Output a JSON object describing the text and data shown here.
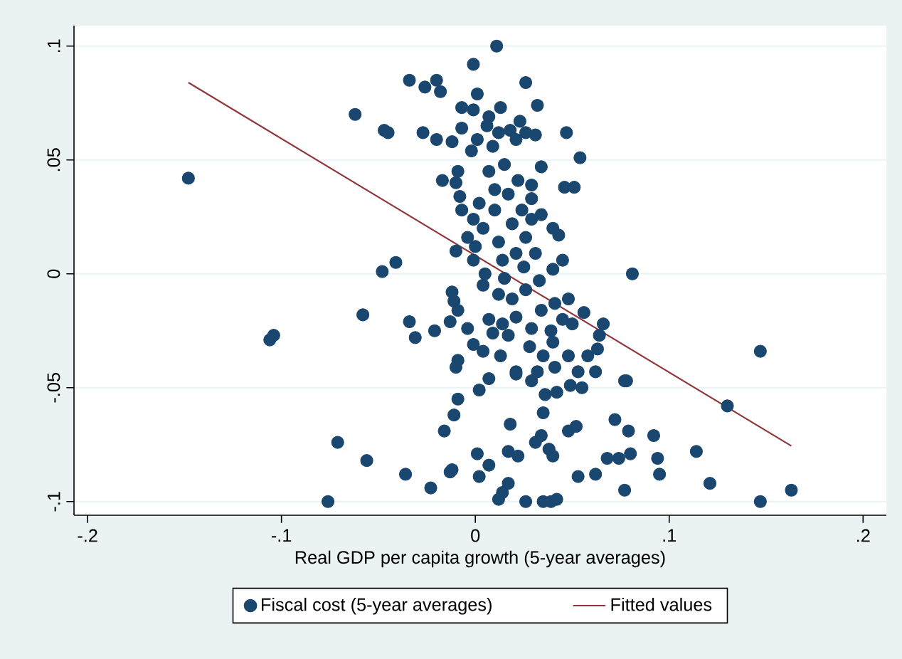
{
  "chart_data": {
    "type": "scatter",
    "xlabel": "Real GDP per capita growth (5-year averages)",
    "xlim": [
      -0.207,
      0.212
    ],
    "ylim": [
      -0.106,
      0.109
    ],
    "xticks": [
      {
        "value": -0.2,
        "label": "-.2"
      },
      {
        "value": -0.1,
        "label": "-.1"
      },
      0,
      {
        "value": 0.1,
        "label": ".1"
      },
      {
        "value": 0.2,
        "label": ".2"
      }
    ],
    "yticks": [
      {
        "value": -0.1,
        "label": "-.1"
      },
      {
        "value": -0.05,
        "label": "-.05"
      },
      0,
      {
        "value": 0.05,
        "label": ".05"
      },
      {
        "value": 0.1,
        "label": ".1"
      }
    ],
    "grid": "y",
    "legend": "bottom",
    "marker": "circle",
    "series": [
      {
        "name": "Fiscal cost (5-year averages)",
        "color": "#1a476f",
        "x": [
          -0.148,
          -0.106,
          -0.104,
          0.011,
          -0.001,
          -0.034,
          -0.02,
          -0.026,
          -0.018,
          0.026,
          0.001,
          -0.062,
          -0.007,
          -0.001,
          0.013,
          0.032,
          0.007,
          0.023,
          -0.047,
          -0.045,
          -0.027,
          -0.02,
          -0.012,
          -0.007,
          0.006,
          0.012,
          0.018,
          0.026,
          0.031,
          0.047,
          0.001,
          0.009,
          0.021,
          0.054,
          0.034,
          0.046,
          0.051,
          -0.017,
          0.029,
          -0.002,
          -0.009,
          -0.01,
          -0.008,
          -0.007,
          -0.001,
          0.002,
          0.007,
          0.015,
          0.022,
          0.01,
          0.017,
          0.029,
          0.024,
          0.034,
          0.04,
          0.043,
          0.045,
          0.04,
          -0.01,
          -0.004,
          -0.041,
          -0.048,
          0.004,
          0.012,
          0.019,
          0.026,
          0.031,
          0.014,
          -0.001,
          0.029,
          0.01,
          0.021,
          -0.058,
          -0.034,
          -0.031,
          -0.021,
          -0.013,
          -0.012,
          -0.011,
          -0.009,
          -0.004,
          -0.001,
          0.007,
          0.009,
          0.004,
          0.013,
          0.017,
          -0.009,
          -0.01,
          0.007,
          0.002,
          0.021,
          0.021,
          0.029,
          0.032,
          0.036,
          0.035,
          0.042,
          0.049,
          0.055,
          0.062,
          0.041,
          0.053,
          0.048,
          0.058,
          0.063,
          0.066,
          0.056,
          0.05,
          0.045,
          0.048,
          0.041,
          0.039,
          0.04,
          0.035,
          0.028,
          0.029,
          0.021,
          0.014,
          0.019,
          0.004,
          0.012,
          0.026,
          0.034,
          0.064,
          0.077,
          -0.009,
          -0.011,
          -0.016,
          -0.071,
          -0.056,
          -0.036,
          -0.023,
          -0.076,
          -0.013,
          -0.012,
          0.001,
          0.007,
          0.002,
          0.018,
          0.017,
          0.022,
          0.017,
          0.014,
          0.012,
          0.026,
          0.035,
          0.039,
          0.042,
          0.031,
          0.034,
          0.038,
          0.04,
          0.048,
          0.052,
          0.053,
          0.062,
          0.072,
          0.068,
          0.074,
          0.077,
          0.081,
          0.147,
          0.078,
          0.13,
          0.079,
          0.092,
          0.08,
          0.094,
          0.114,
          0.095,
          0.121,
          0.147,
          0.163,
          0.005,
          0.015,
          0.025,
          0.0,
          0.033
        ],
        "values": [
          0.042,
          -0.029,
          -0.027,
          0.1,
          0.092,
          0.085,
          0.085,
          0.082,
          0.08,
          0.084,
          0.079,
          0.07,
          0.073,
          0.072,
          0.073,
          0.074,
          0.069,
          0.067,
          0.063,
          0.062,
          0.062,
          0.059,
          0.058,
          0.064,
          0.065,
          0.062,
          0.063,
          0.062,
          0.061,
          0.062,
          0.059,
          0.056,
          0.059,
          0.051,
          0.047,
          0.038,
          0.038,
          0.041,
          0.039,
          0.054,
          0.045,
          0.04,
          0.034,
          0.028,
          0.024,
          0.031,
          0.045,
          0.048,
          0.041,
          0.037,
          0.035,
          0.033,
          0.028,
          0.026,
          0.02,
          0.017,
          0.006,
          0.002,
          0.01,
          0.016,
          0.005,
          0.001,
          0.02,
          0.014,
          0.022,
          0.016,
          0.009,
          0.006,
          0.006,
          0.024,
          0.028,
          0.009,
          -0.018,
          -0.021,
          -0.028,
          -0.025,
          -0.021,
          -0.008,
          -0.012,
          -0.016,
          -0.024,
          -0.031,
          -0.02,
          -0.026,
          -0.034,
          -0.036,
          -0.027,
          -0.038,
          -0.041,
          -0.046,
          -0.051,
          -0.043,
          -0.044,
          -0.047,
          -0.043,
          -0.053,
          -0.061,
          -0.052,
          -0.049,
          -0.05,
          -0.043,
          -0.041,
          -0.043,
          -0.036,
          -0.036,
          -0.033,
          -0.022,
          -0.017,
          -0.022,
          -0.02,
          -0.011,
          -0.013,
          -0.025,
          -0.03,
          -0.036,
          -0.032,
          -0.024,
          -0.019,
          -0.022,
          -0.011,
          -0.005,
          -0.009,
          -0.007,
          -0.016,
          -0.027,
          -0.047,
          -0.055,
          -0.062,
          -0.069,
          -0.074,
          -0.082,
          -0.088,
          -0.094,
          -0.1,
          -0.087,
          -0.086,
          -0.079,
          -0.084,
          -0.089,
          -0.066,
          -0.078,
          -0.08,
          -0.092,
          -0.096,
          -0.099,
          -0.1,
          -0.1,
          -0.1,
          -0.099,
          -0.074,
          -0.071,
          -0.077,
          -0.08,
          -0.069,
          -0.067,
          -0.089,
          -0.088,
          -0.064,
          -0.081,
          -0.081,
          -0.095,
          0.0,
          -0.034,
          -0.047,
          -0.058,
          -0.069,
          -0.071,
          -0.079,
          -0.081,
          -0.078,
          -0.088,
          -0.092,
          -0.1,
          -0.095,
          0.0,
          -0.002,
          0.003,
          0.012,
          -0.003
        ]
      },
      {
        "name": "Fitted values",
        "type": "line",
        "marker": "none",
        "color": "#90353b",
        "x": [
          -0.148,
          0.163
        ],
        "values": [
          0.084,
          -0.0756
        ]
      }
    ]
  }
}
